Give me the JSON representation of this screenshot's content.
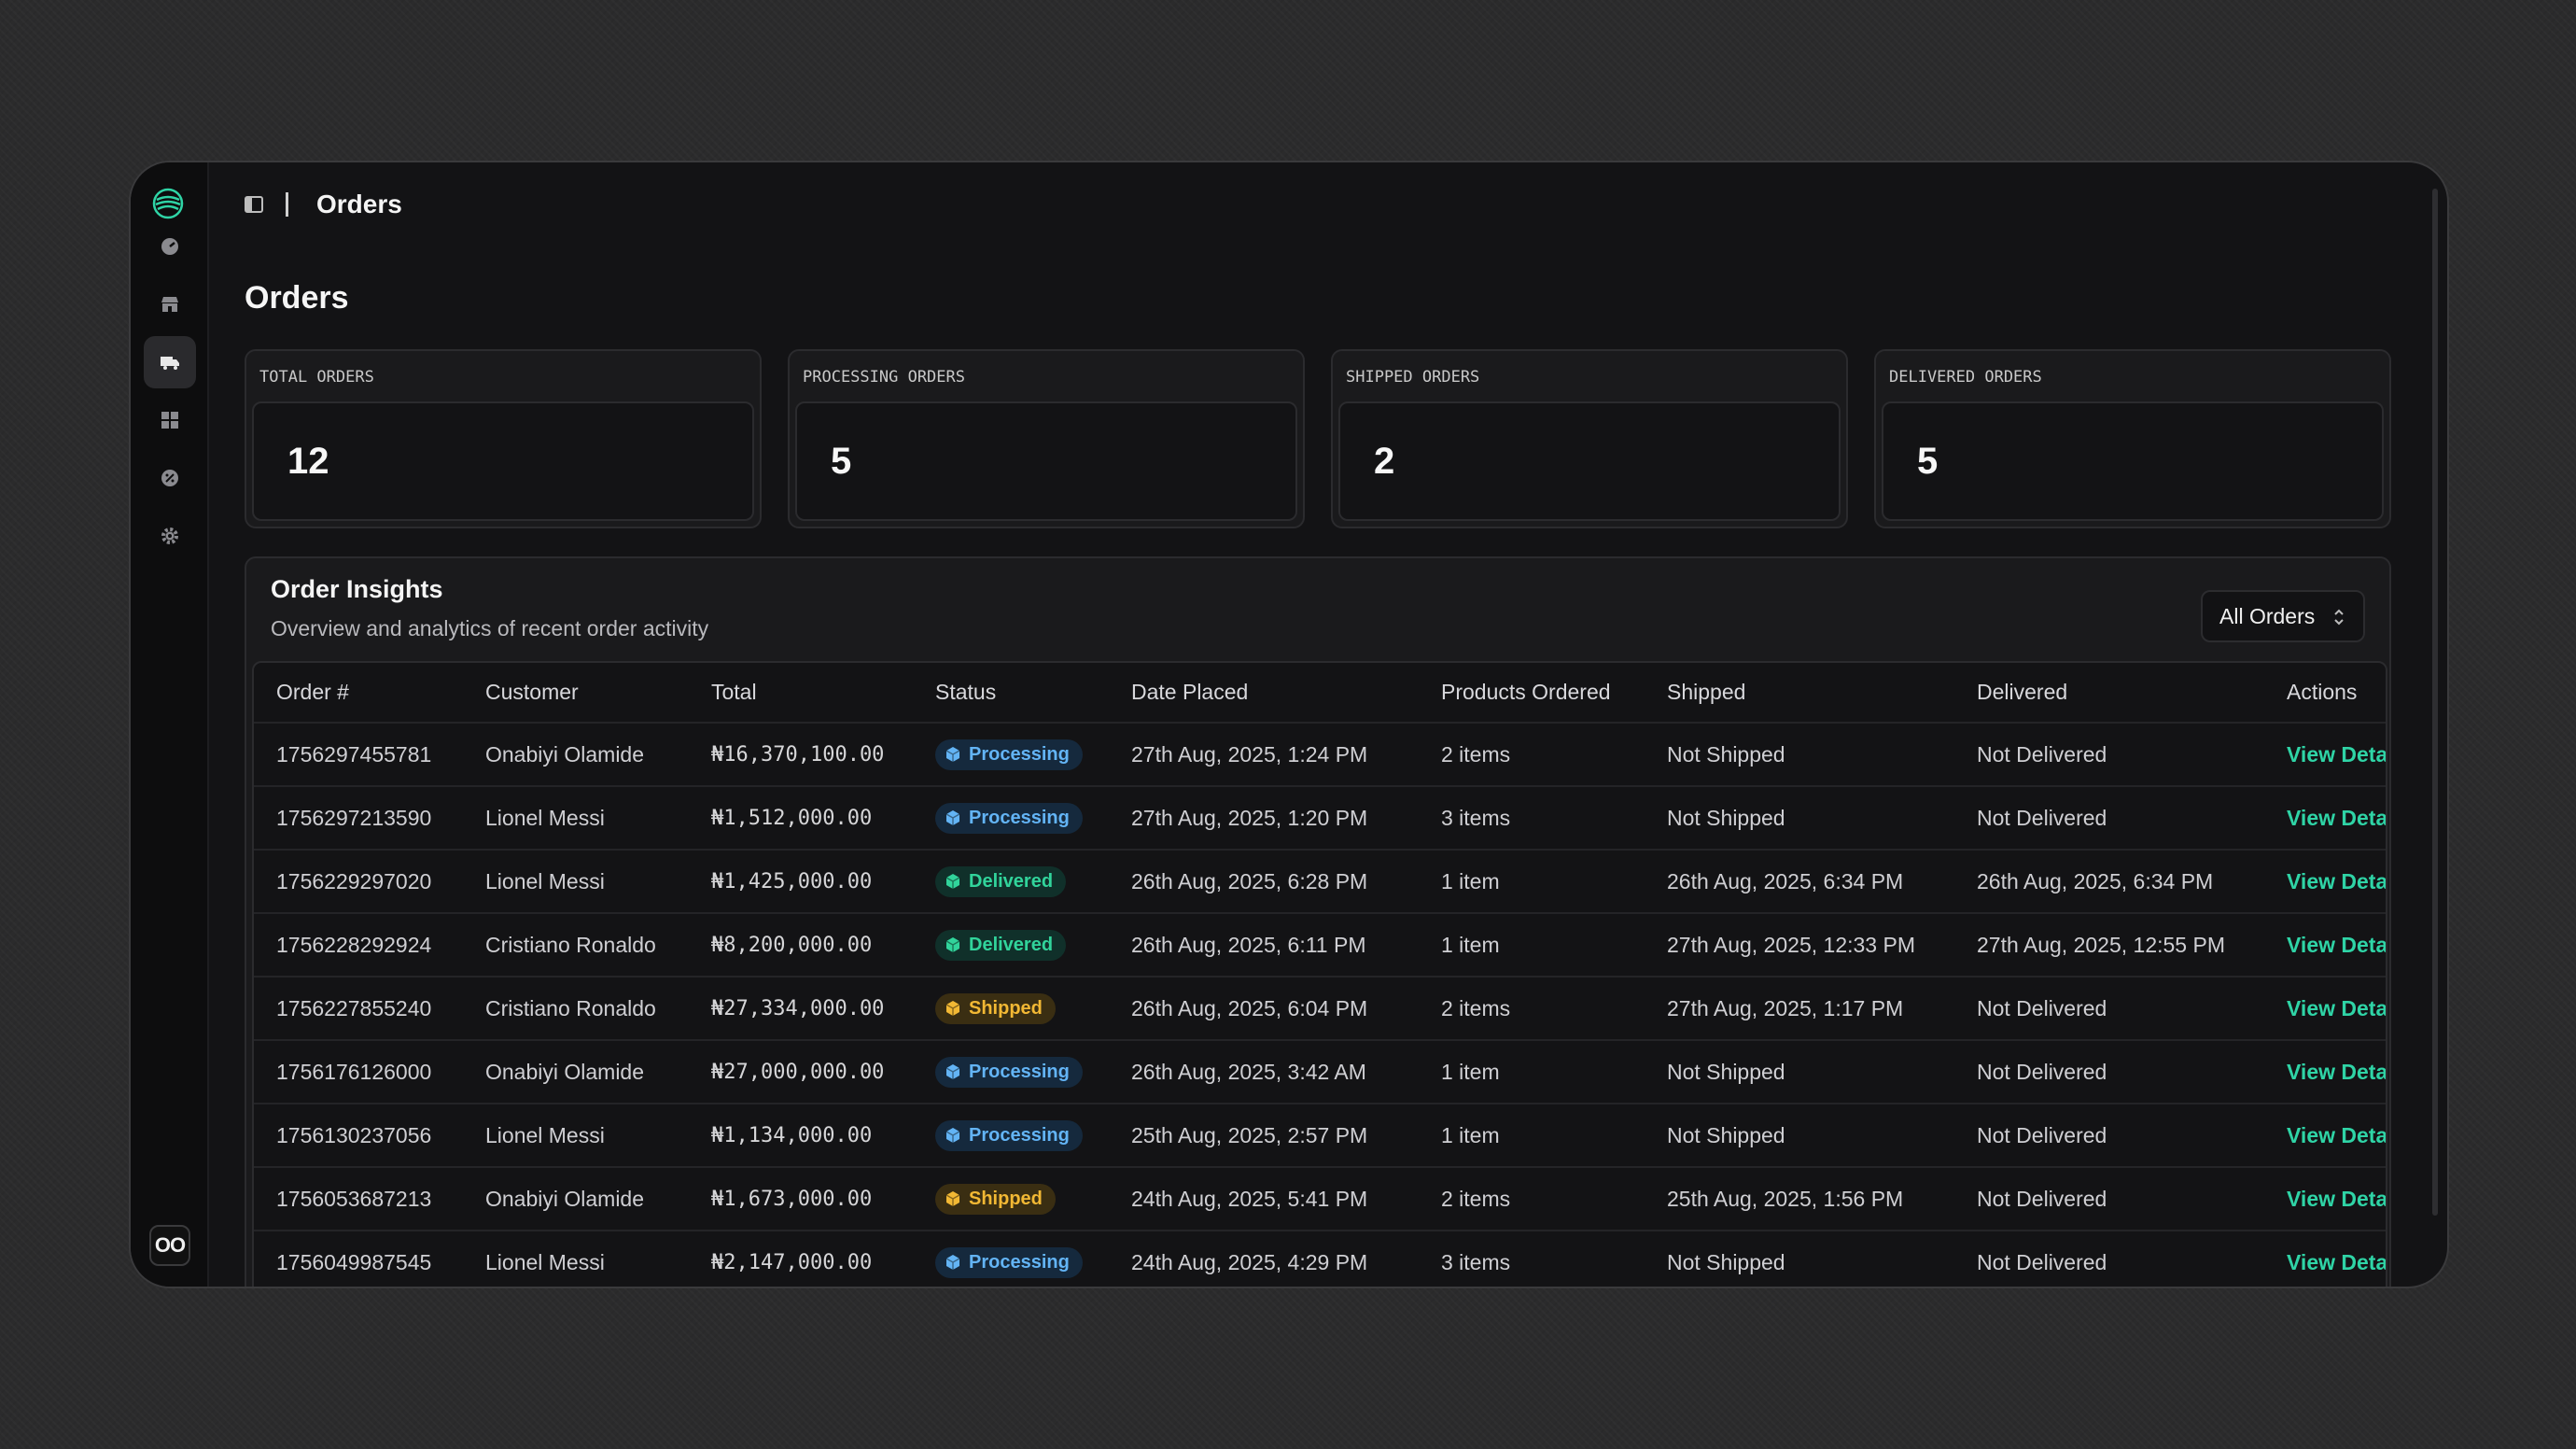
{
  "topbar": {
    "breadcrumb": "Orders"
  },
  "page": {
    "title": "Orders"
  },
  "stats": [
    {
      "label": "TOTAL ORDERS",
      "value": "12"
    },
    {
      "label": "PROCESSING ORDERS",
      "value": "5"
    },
    {
      "label": "SHIPPED ORDERS",
      "value": "2"
    },
    {
      "label": "DELIVERED ORDERS",
      "value": "5"
    }
  ],
  "insights": {
    "title": "Order Insights",
    "subtitle": "Overview and analytics of recent order activity",
    "filter": "All Orders"
  },
  "table": {
    "columns": [
      "Order #",
      "Customer",
      "Total",
      "Status",
      "Date Placed",
      "Products Ordered",
      "Shipped",
      "Delivered",
      "Actions"
    ],
    "rows": [
      {
        "order": "1756297455781",
        "customer": "Onabiyi Olamide",
        "total": "₦16,370,100.00",
        "status": "Processing",
        "placed": "27th Aug, 2025, 1:24 PM",
        "products": "2 items",
        "shipped": "Not Shipped",
        "delivered": "Not Delivered",
        "action": "View Deta"
      },
      {
        "order": "1756297213590",
        "customer": "Lionel Messi",
        "total": "₦1,512,000.00",
        "status": "Processing",
        "placed": "27th Aug, 2025, 1:20 PM",
        "products": "3 items",
        "shipped": "Not Shipped",
        "delivered": "Not Delivered",
        "action": "View Deta"
      },
      {
        "order": "1756229297020",
        "customer": "Lionel Messi",
        "total": "₦1,425,000.00",
        "status": "Delivered",
        "placed": "26th Aug, 2025, 6:28 PM",
        "products": "1 item",
        "shipped": "26th Aug, 2025, 6:34 PM",
        "delivered": "26th Aug, 2025, 6:34 PM",
        "action": "View Deta"
      },
      {
        "order": "1756228292924",
        "customer": "Cristiano Ronaldo",
        "total": "₦8,200,000.00",
        "status": "Delivered",
        "placed": "26th Aug, 2025, 6:11 PM",
        "products": "1 item",
        "shipped": "27th Aug, 2025, 12:33 PM",
        "delivered": "27th Aug, 2025, 12:55 PM",
        "action": "View Deta"
      },
      {
        "order": "1756227855240",
        "customer": "Cristiano Ronaldo",
        "total": "₦27,334,000.00",
        "status": "Shipped",
        "placed": "26th Aug, 2025, 6:04 PM",
        "products": "2 items",
        "shipped": "27th Aug, 2025, 1:17 PM",
        "delivered": "Not Delivered",
        "action": "View Deta"
      },
      {
        "order": "1756176126000",
        "customer": "Onabiyi Olamide",
        "total": "₦27,000,000.00",
        "status": "Processing",
        "placed": "26th Aug, 2025, 3:42 AM",
        "products": "1 item",
        "shipped": "Not Shipped",
        "delivered": "Not Delivered",
        "action": "View Deta"
      },
      {
        "order": "1756130237056",
        "customer": "Lionel Messi",
        "total": "₦1,134,000.00",
        "status": "Processing",
        "placed": "25th Aug, 2025, 2:57 PM",
        "products": "1 item",
        "shipped": "Not Shipped",
        "delivered": "Not Delivered",
        "action": "View Deta"
      },
      {
        "order": "1756053687213",
        "customer": "Onabiyi Olamide",
        "total": "₦1,673,000.00",
        "status": "Shipped",
        "placed": "24th Aug, 2025, 5:41 PM",
        "products": "2 items",
        "shipped": "25th Aug, 2025, 1:56 PM",
        "delivered": "Not Delivered",
        "action": "View Deta"
      },
      {
        "order": "1756049987545",
        "customer": "Lionel Messi",
        "total": "₦2,147,000.00",
        "status": "Processing",
        "placed": "24th Aug, 2025, 4:29 PM",
        "products": "3 items",
        "shipped": "Not Shipped",
        "delivered": "Not Delivered",
        "action": "View Deta"
      }
    ]
  },
  "rail": {
    "items": [
      "dashboard-icon",
      "store-icon",
      "orders-truck-icon",
      "grid-icon",
      "discount-icon",
      "settings-icon"
    ],
    "active": "orders-truck-icon",
    "bottom_badge": "OO"
  },
  "colors": {
    "accent": "#2fd4a6",
    "processing": "#63b4f5",
    "delivered": "#31d49b",
    "shipped": "#f2b834"
  }
}
